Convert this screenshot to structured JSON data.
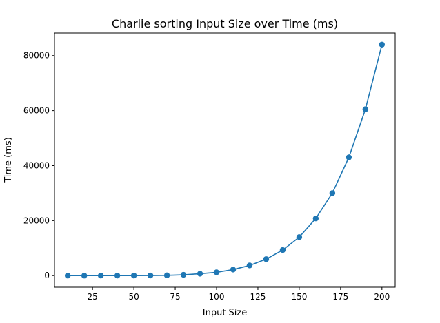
{
  "chart_data": {
    "type": "line",
    "title": "Charlie sorting Input Size over Time (ms)",
    "xlabel": "Input Size",
    "ylabel": "Time (ms)",
    "xlim": [
      2,
      208
    ],
    "ylim": [
      -4200,
      88200
    ],
    "xticks": [
      25,
      50,
      75,
      100,
      125,
      150,
      175,
      200
    ],
    "yticks": [
      0,
      20000,
      40000,
      60000,
      80000
    ],
    "grid": false,
    "legend": "none",
    "series": [
      {
        "color": "#1f77b4",
        "marker": "circle",
        "x": [
          10,
          20,
          30,
          40,
          50,
          60,
          70,
          80,
          90,
          100,
          110,
          120,
          130,
          140,
          150,
          160,
          170,
          180,
          190,
          200
        ],
        "y": [
          0,
          0,
          5,
          10,
          20,
          50,
          100,
          300,
          700,
          1200,
          2200,
          3700,
          6000,
          9300,
          14000,
          20800,
          30000,
          43000,
          60500,
          84000
        ]
      }
    ]
  }
}
